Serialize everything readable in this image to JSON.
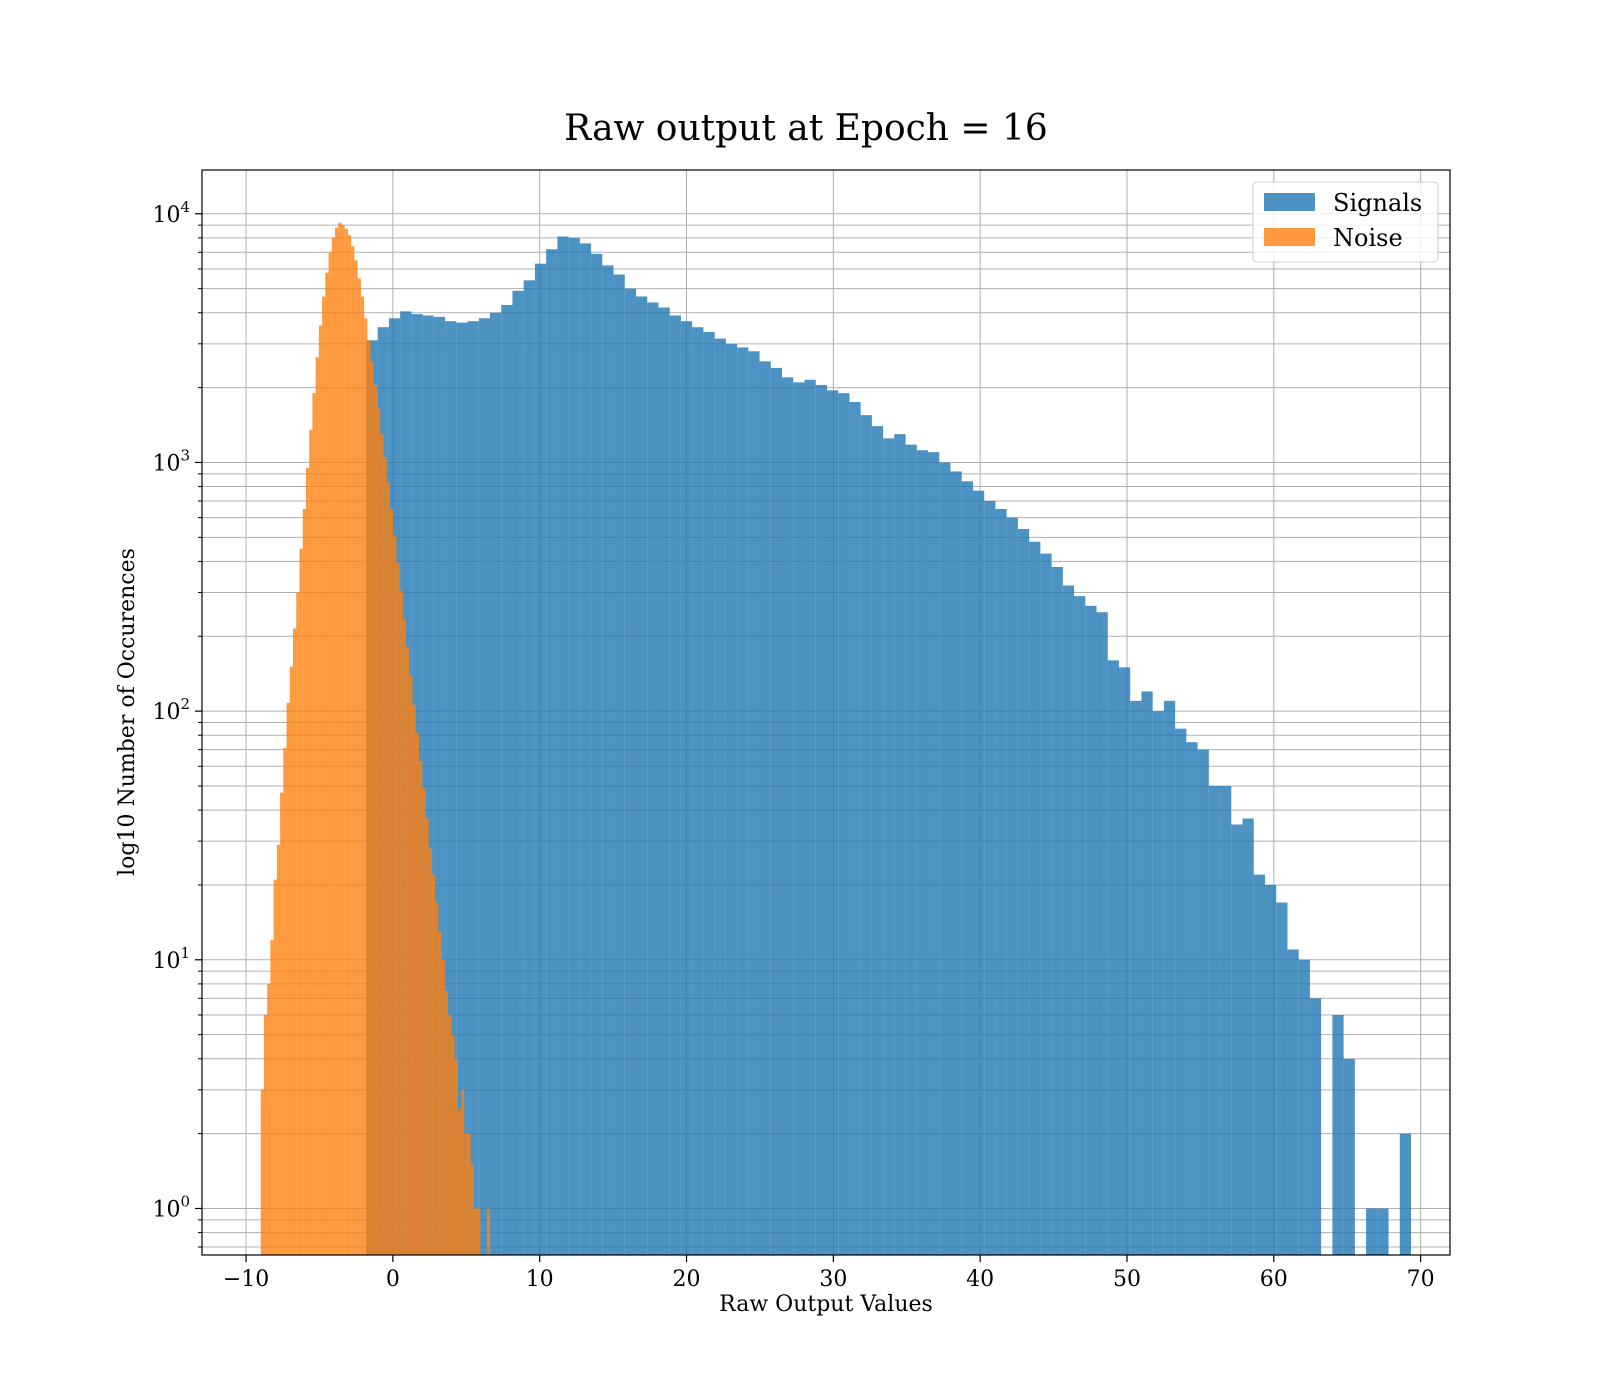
{
  "chart_data": {
    "type": "bar",
    "title": "Raw output at Epoch = 16",
    "xlabel": "Raw Output Values",
    "ylabel": "log10 Number of Occurences",
    "xlim": [
      -13,
      72
    ],
    "ylim": [
      0.65,
      15000
    ],
    "yscale": "log",
    "grid": true,
    "legend_position": "top-right",
    "x_ticks": [
      -10,
      0,
      10,
      20,
      30,
      40,
      50,
      60,
      70
    ],
    "x_tick_labels": [
      "−10",
      "0",
      "10",
      "20",
      "30",
      "40",
      "50",
      "60",
      "70"
    ],
    "y_ticks": [
      1,
      10,
      100,
      1000,
      10000
    ],
    "y_tick_labels": [
      {
        "base": "10",
        "exp": "0"
      },
      {
        "base": "10",
        "exp": "1"
      },
      {
        "base": "10",
        "exp": "2"
      },
      {
        "base": "10",
        "exp": "3"
      },
      {
        "base": "10",
        "exp": "4"
      }
    ],
    "series": [
      {
        "name": "Signals",
        "color": "#1f77b4",
        "alpha": 0.8,
        "bin_start": -1.8,
        "bin_width": 0.765,
        "counts": [
          3100,
          3500,
          3800,
          4050,
          3950,
          3900,
          3850,
          3700,
          3650,
          3700,
          3800,
          4000,
          4300,
          4900,
          5400,
          6300,
          7200,
          8100,
          8000,
          7600,
          6900,
          6200,
          5700,
          5000,
          4650,
          4400,
          4200,
          3900,
          3700,
          3500,
          3350,
          3150,
          3000,
          2900,
          2800,
          2550,
          2400,
          2200,
          2100,
          2150,
          2050,
          1950,
          1900,
          1750,
          1550,
          1400,
          1250,
          1300,
          1180,
          1120,
          1100,
          1000,
          920,
          840,
          770,
          700,
          650,
          600,
          540,
          480,
          430,
          380,
          320,
          290,
          265,
          250,
          160,
          150,
          110,
          120,
          100,
          110,
          85,
          75,
          70,
          50,
          50,
          35,
          37,
          22,
          20,
          17,
          11,
          10,
          7,
          0,
          6,
          4,
          0,
          1,
          1,
          0,
          2
        ]
      },
      {
        "name": "Noise",
        "color": "#ff7f0e",
        "alpha": 0.8,
        "bin_start": -9.0,
        "bin_width": 0.22,
        "counts": [
          3,
          6,
          8,
          12,
          21,
          29,
          47,
          71,
          108,
          151,
          215,
          300,
          450,
          650,
          950,
          1350,
          1900,
          2650,
          3550,
          4650,
          5800,
          7000,
          8000,
          8800,
          9200,
          9000,
          8700,
          8200,
          7400,
          6500,
          5500,
          4650,
          3800,
          3100,
          2550,
          2050,
          1650,
          1300,
          1050,
          830,
          650,
          510,
          395,
          305,
          235,
          182,
          139,
          106,
          82,
          63,
          49,
          37,
          28,
          22,
          17,
          13,
          10,
          7.5,
          6,
          5,
          4,
          2.5,
          3,
          2,
          2,
          1.5,
          1,
          1,
          0,
          0,
          1
        ]
      }
    ]
  }
}
